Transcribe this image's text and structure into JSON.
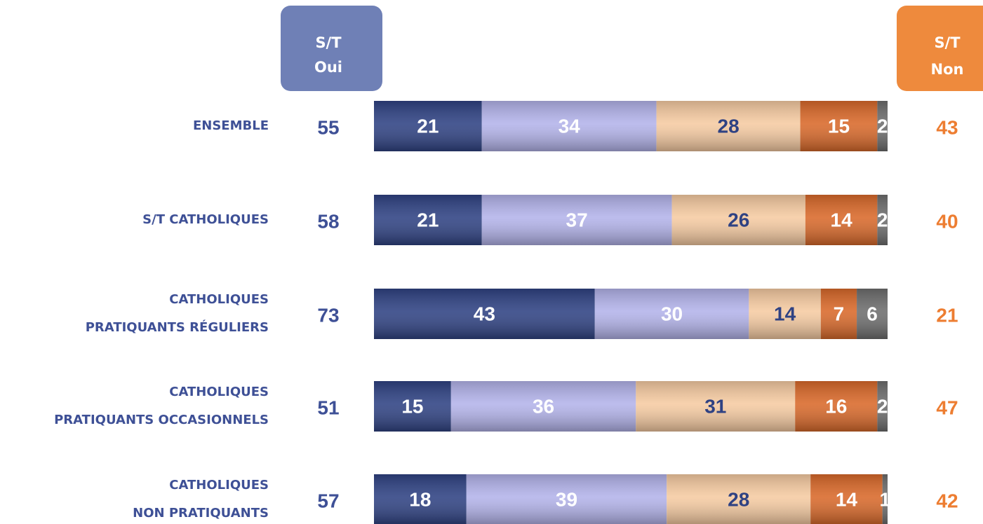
{
  "chart_data": {
    "type": "stacked_bar_horizontal",
    "categories": [
      [
        "ENSEMBLE"
      ],
      [
        "S/T CATHOLIQUES"
      ],
      [
        "CATHOLIQUES",
        "PRATIQUANTS RÉGULIERS"
      ],
      [
        "CATHOLIQUES",
        "PRATIQUANTS OCCASIONNELS"
      ],
      [
        "CATHOLIQUES",
        "NON PRATIQUANTS"
      ]
    ],
    "series": [
      {
        "color": "#2f4283",
        "label_color": "#ffffff",
        "values": [
          21,
          21,
          43,
          15,
          18
        ]
      },
      {
        "color": "#b3b3ea",
        "label_color": "#ffffff",
        "values": [
          34,
          37,
          30,
          36,
          39
        ]
      },
      {
        "color": "#f6cba2",
        "label_color": "#2f4283",
        "values": [
          28,
          26,
          14,
          31,
          28
        ]
      },
      {
        "color": "#d9692a",
        "label_color": "#ffffff",
        "values": [
          15,
          14,
          7,
          16,
          14
        ]
      },
      {
        "color": "#6e6e6e",
        "label_color": "#ffffff",
        "values": [
          2,
          2,
          6,
          2,
          1
        ]
      }
    ],
    "xlim": [
      0,
      100
    ],
    "totals": [
      {
        "header": [
          "S/T",
          "Oui"
        ],
        "box_color": "#6f80b6",
        "color": "#3e5096",
        "values": [
          55,
          58,
          73,
          51,
          57
        ]
      },
      {
        "header": [
          "S/T",
          "Non"
        ],
        "box_color": "#ee8a3d",
        "color": "#ed7d31",
        "values": [
          43,
          40,
          21,
          47,
          42
        ]
      }
    ]
  }
}
